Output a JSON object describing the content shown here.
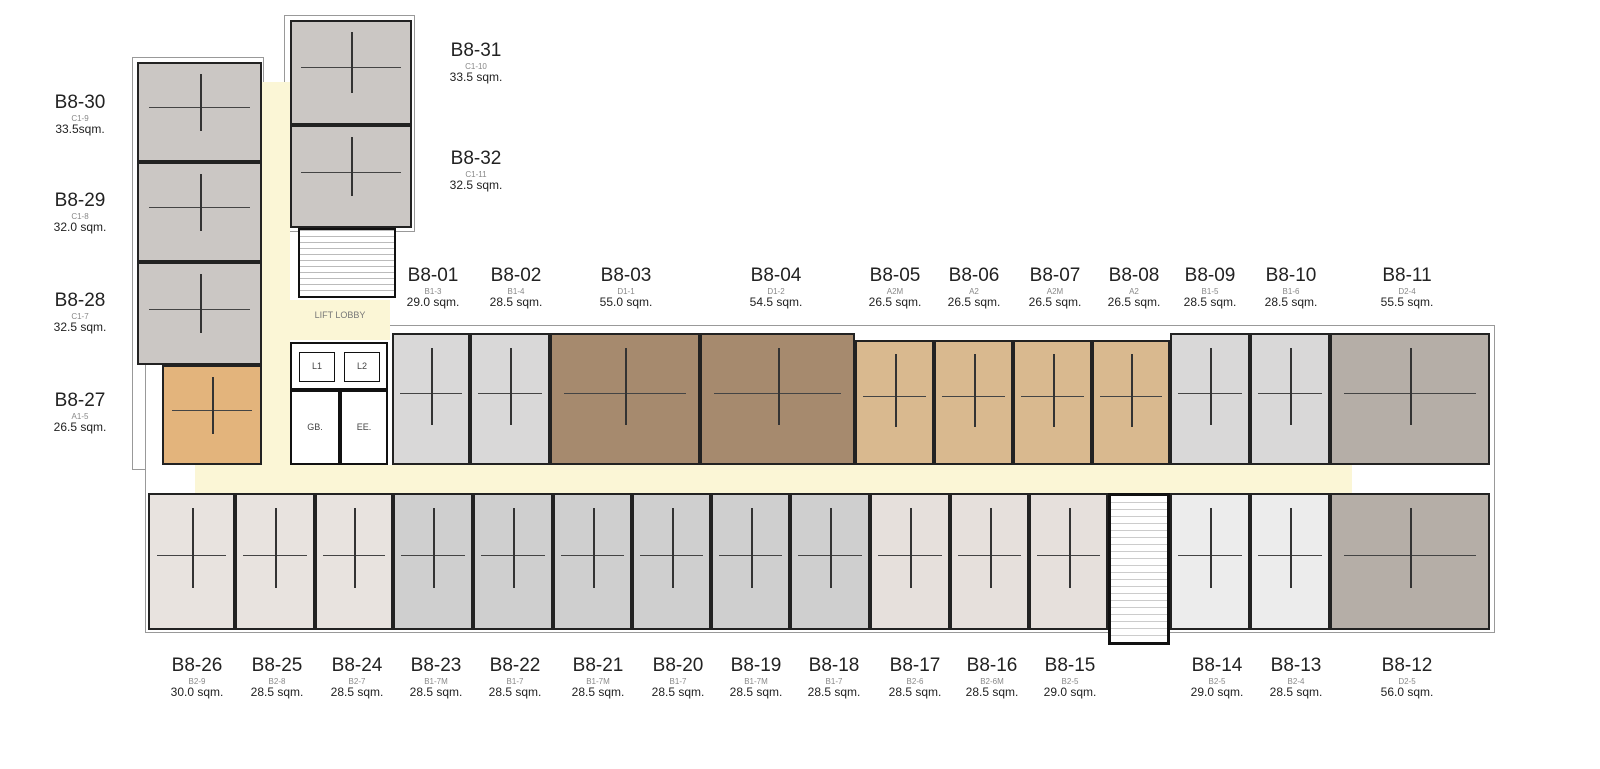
{
  "colors": {
    "corridor": "#fbf6d6",
    "grey": "#cbc7c4",
    "light": "#d9d8d8",
    "brown": "#a68a6e",
    "tan": "#d9b98f",
    "orange": "#e3b47c",
    "taupe": "#b5aea7",
    "pale": "#e8e3df"
  },
  "core": {
    "lift_lobby": "LIFT LOBBY",
    "lift1": "L1",
    "lift2": "L2",
    "gb": "GB.",
    "ee": "EE."
  },
  "units": [
    {
      "code": "B8-01",
      "type": "B1-3",
      "area": "29.0 sqm."
    },
    {
      "code": "B8-02",
      "type": "B1-4",
      "area": "28.5 sqm."
    },
    {
      "code": "B8-03",
      "type": "D1-1",
      "area": "55.0 sqm."
    },
    {
      "code": "B8-04",
      "type": "D1-2",
      "area": "54.5 sqm."
    },
    {
      "code": "B8-05",
      "type": "A2M",
      "area": "26.5 sqm."
    },
    {
      "code": "B8-06",
      "type": "A2",
      "area": "26.5 sqm."
    },
    {
      "code": "B8-07",
      "type": "A2M",
      "area": "26.5 sqm."
    },
    {
      "code": "B8-08",
      "type": "A2",
      "area": "26.5 sqm."
    },
    {
      "code": "B8-09",
      "type": "B1-5",
      "area": "28.5 sqm."
    },
    {
      "code": "B8-10",
      "type": "B1-6",
      "area": "28.5 sqm."
    },
    {
      "code": "B8-11",
      "type": "D2-4",
      "area": "55.5 sqm."
    },
    {
      "code": "B8-12",
      "type": "D2-5",
      "area": "56.0 sqm."
    },
    {
      "code": "B8-13",
      "type": "B2-4",
      "area": "28.5 sqm."
    },
    {
      "code": "B8-14",
      "type": "B2-5",
      "area": "29.0 sqm."
    },
    {
      "code": "B8-15",
      "type": "B2-5",
      "area": "29.0 sqm."
    },
    {
      "code": "B8-16",
      "type": "B2-6M",
      "area": "28.5 sqm."
    },
    {
      "code": "B8-17",
      "type": "B2-6",
      "area": "28.5 sqm."
    },
    {
      "code": "B8-18",
      "type": "B1-7",
      "area": "28.5 sqm."
    },
    {
      "code": "B8-19",
      "type": "B1-7M",
      "area": "28.5 sqm."
    },
    {
      "code": "B8-20",
      "type": "B1-7",
      "area": "28.5 sqm."
    },
    {
      "code": "B8-21",
      "type": "B1-7M",
      "area": "28.5 sqm."
    },
    {
      "code": "B8-22",
      "type": "B1-7",
      "area": "28.5 sqm."
    },
    {
      "code": "B8-23",
      "type": "B1-7M",
      "area": "28.5 sqm."
    },
    {
      "code": "B8-24",
      "type": "B2-7",
      "area": "28.5 sqm."
    },
    {
      "code": "B8-25",
      "type": "B2-8",
      "area": "28.5 sqm."
    },
    {
      "code": "B8-26",
      "type": "B2-9",
      "area": "30.0 sqm."
    },
    {
      "code": "B8-27",
      "type": "A1-5",
      "area": "26.5 sqm."
    },
    {
      "code": "B8-28",
      "type": "C1-7",
      "area": "32.5 sqm."
    },
    {
      "code": "B8-29",
      "type": "C1-8",
      "area": "32.0 sqm."
    },
    {
      "code": "B8-30",
      "type": "C1-9",
      "area": "33.5sqm."
    },
    {
      "code": "B8-31",
      "type": "C1-10",
      "area": "33.5 sqm."
    },
    {
      "code": "B8-32",
      "type": "C1-11",
      "area": "32.5 sqm."
    }
  ]
}
